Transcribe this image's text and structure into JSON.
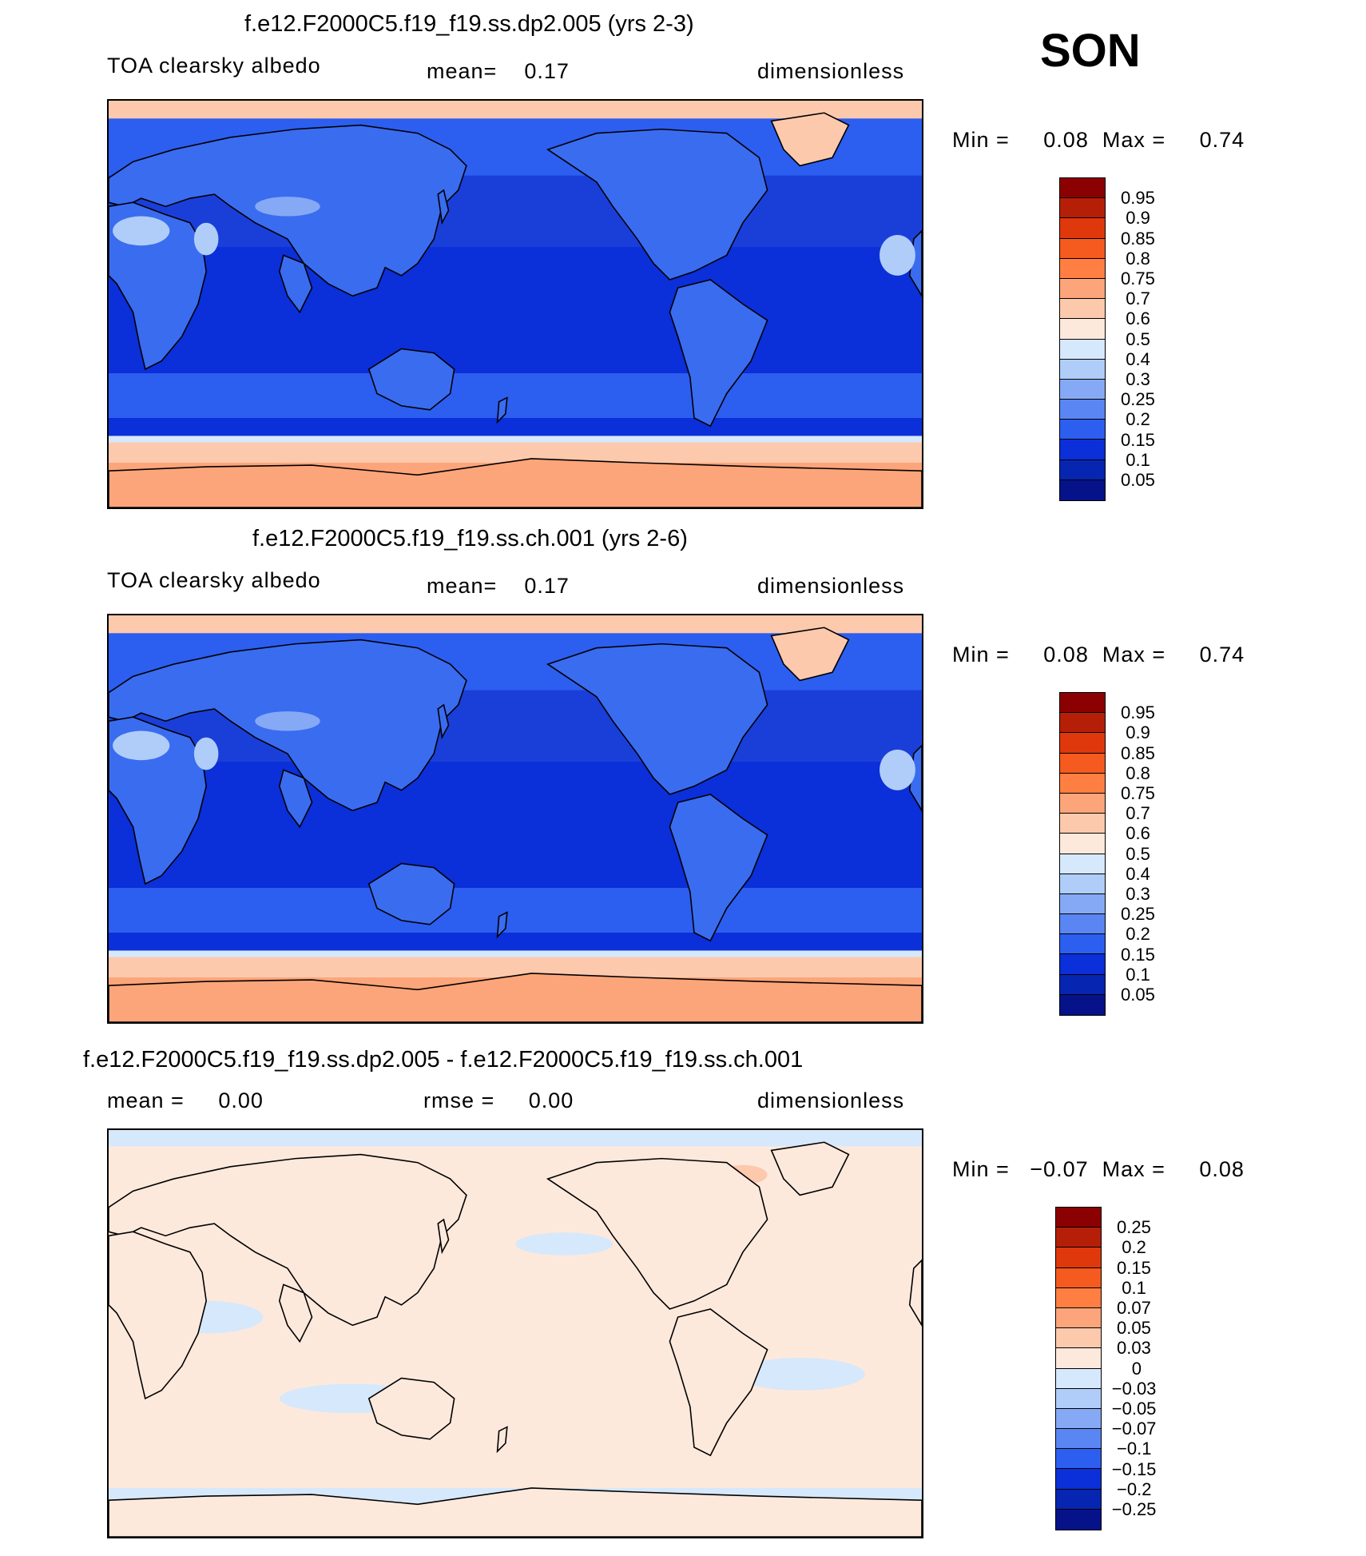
{
  "season": "SON",
  "panels": [
    {
      "id": "top",
      "title": "f.e12.F2000C5.f19_f19.ss.dp2.005 (yrs 2-3)",
      "left_label": "TOA clearsky albedo",
      "center_label": "mean=    0.17",
      "right_label": "dimensionless",
      "minmax": "Min =     0.08  Max =     0.74",
      "ocean_color": "#1a3fd9",
      "land_color": "#3a6cf0"
    },
    {
      "id": "middle",
      "title": "f.e12.F2000C5.f19_f19.ss.ch.001 (yrs 2-6)",
      "left_label": "TOA clearsky albedo",
      "center_label": "mean=    0.17",
      "right_label": "dimensionless",
      "minmax": "Min =     0.08  Max =     0.74",
      "ocean_color": "#1a3fd9",
      "land_color": "#3a6cf0"
    },
    {
      "id": "diff",
      "title": "f.e12.F2000C5.f19_f19.ss.dp2.005 - f.e12.F2000C5.f19_f19.ss.ch.001",
      "left_label": "mean =     0.00",
      "center_label": "rmse =     0.00",
      "right_label": "dimensionless",
      "minmax": "Min =   −0.07  Max =     0.08",
      "ocean_color": "#fde9dc",
      "land_color": "#fde9dc"
    }
  ],
  "colorbar_main": {
    "labels": [
      "0.95",
      "0.9",
      "0.85",
      "0.8",
      "0.75",
      "0.7",
      "0.6",
      "0.5",
      "0.4",
      "0.3",
      "0.25",
      "0.2",
      "0.15",
      "0.1",
      "0.05"
    ],
    "colors": [
      "#8b0000",
      "#b51f08",
      "#e0380d",
      "#f55a1f",
      "#ff7f42",
      "#fda57a",
      "#fcc9ad",
      "#fde9dc",
      "#d6e8fb",
      "#afcdf8",
      "#86a9f6",
      "#5a86f3",
      "#2c5ef0",
      "#0b2fd8",
      "#0625b0",
      "#06128a"
    ]
  },
  "colorbar_diff": {
    "labels": [
      "0.25",
      "0.2",
      "0.15",
      "0.1",
      "0.07",
      "0.05",
      "0.03",
      "0",
      "−0.03",
      "−0.05",
      "−0.07",
      "−0.1",
      "−0.15",
      "−0.2",
      "−0.25"
    ],
    "colors": [
      "#8b0000",
      "#b51f08",
      "#e0380d",
      "#f55a1f",
      "#ff7f42",
      "#fda57a",
      "#fcc9ad",
      "#fde9dc",
      "#d6e8fb",
      "#afcdf8",
      "#86a9f6",
      "#5a86f3",
      "#2c5ef0",
      "#0b2fd8",
      "#0625b0",
      "#06128a"
    ]
  }
}
